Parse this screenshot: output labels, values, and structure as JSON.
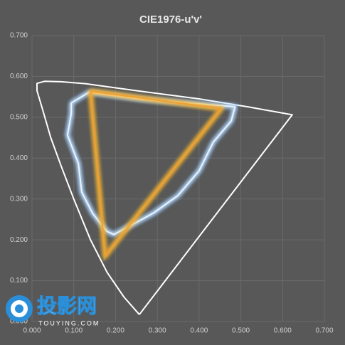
{
  "chart_data": {
    "type": "line",
    "title": "CIE1976-u'v'",
    "xlim": [
      0,
      0.7
    ],
    "ylim": [
      0,
      0.7
    ],
    "xticks": [
      {
        "value": 0,
        "label": "0.000"
      },
      {
        "value": 0.1,
        "label": "0.100"
      },
      {
        "value": 0.2,
        "label": "0.200"
      },
      {
        "value": 0.3,
        "label": "0.300"
      },
      {
        "value": 0.4,
        "label": "0.400"
      },
      {
        "value": 0.5,
        "label": "0.500"
      },
      {
        "value": 0.6,
        "label": "0.600"
      },
      {
        "value": 0.7,
        "label": "0.700"
      }
    ],
    "yticks": [
      {
        "value": 0,
        "label": "0.000"
      },
      {
        "value": 0.1,
        "label": "0.100"
      },
      {
        "value": 0.2,
        "label": "0.200"
      },
      {
        "value": 0.3,
        "label": "0.300"
      },
      {
        "value": 0.4,
        "label": "0.400"
      },
      {
        "value": 0.5,
        "label": "0.500"
      },
      {
        "value": 0.6,
        "label": "0.600"
      },
      {
        "value": 0.7,
        "label": "0.700"
      }
    ],
    "grid": true,
    "series": [
      {
        "color": "#ffffff",
        "glow": false,
        "x": [
          0.257,
          0.22,
          0.18,
          0.14,
          0.1,
          0.07,
          0.045,
          0.025,
          0.012,
          0.012,
          0.03,
          0.07,
          0.13,
          0.25,
          0.4,
          0.52,
          0.623,
          0.257
        ],
        "values": [
          0.017,
          0.06,
          0.12,
          0.2,
          0.3,
          0.38,
          0.45,
          0.52,
          0.565,
          0.583,
          0.588,
          0.587,
          0.582,
          0.565,
          0.545,
          0.525,
          0.506,
          0.017
        ]
      },
      {
        "color": "#e8f4ff",
        "glow": "#6fb4ff",
        "x": [
          0.094,
          0.136,
          0.264,
          0.434,
          0.486,
          0.477,
          0.434,
          0.4,
          0.349,
          0.29,
          0.196,
          0.179,
          0.145,
          0.119,
          0.111,
          0.085,
          0.094,
          0.094
        ],
        "values": [
          0.535,
          0.561,
          0.544,
          0.53,
          0.526,
          0.491,
          0.439,
          0.369,
          0.308,
          0.265,
          0.213,
          0.221,
          0.265,
          0.317,
          0.387,
          0.456,
          0.509,
          0.535
        ]
      },
      {
        "color": "#f0a030",
        "glow": "#ffcf40",
        "x": [
          0.14,
          0.453,
          0.175,
          0.14
        ],
        "values": [
          0.564,
          0.521,
          0.16,
          0.564
        ]
      }
    ],
    "watermark": {
      "title": "投影网",
      "subtitle": "TOUYING.COM"
    }
  }
}
